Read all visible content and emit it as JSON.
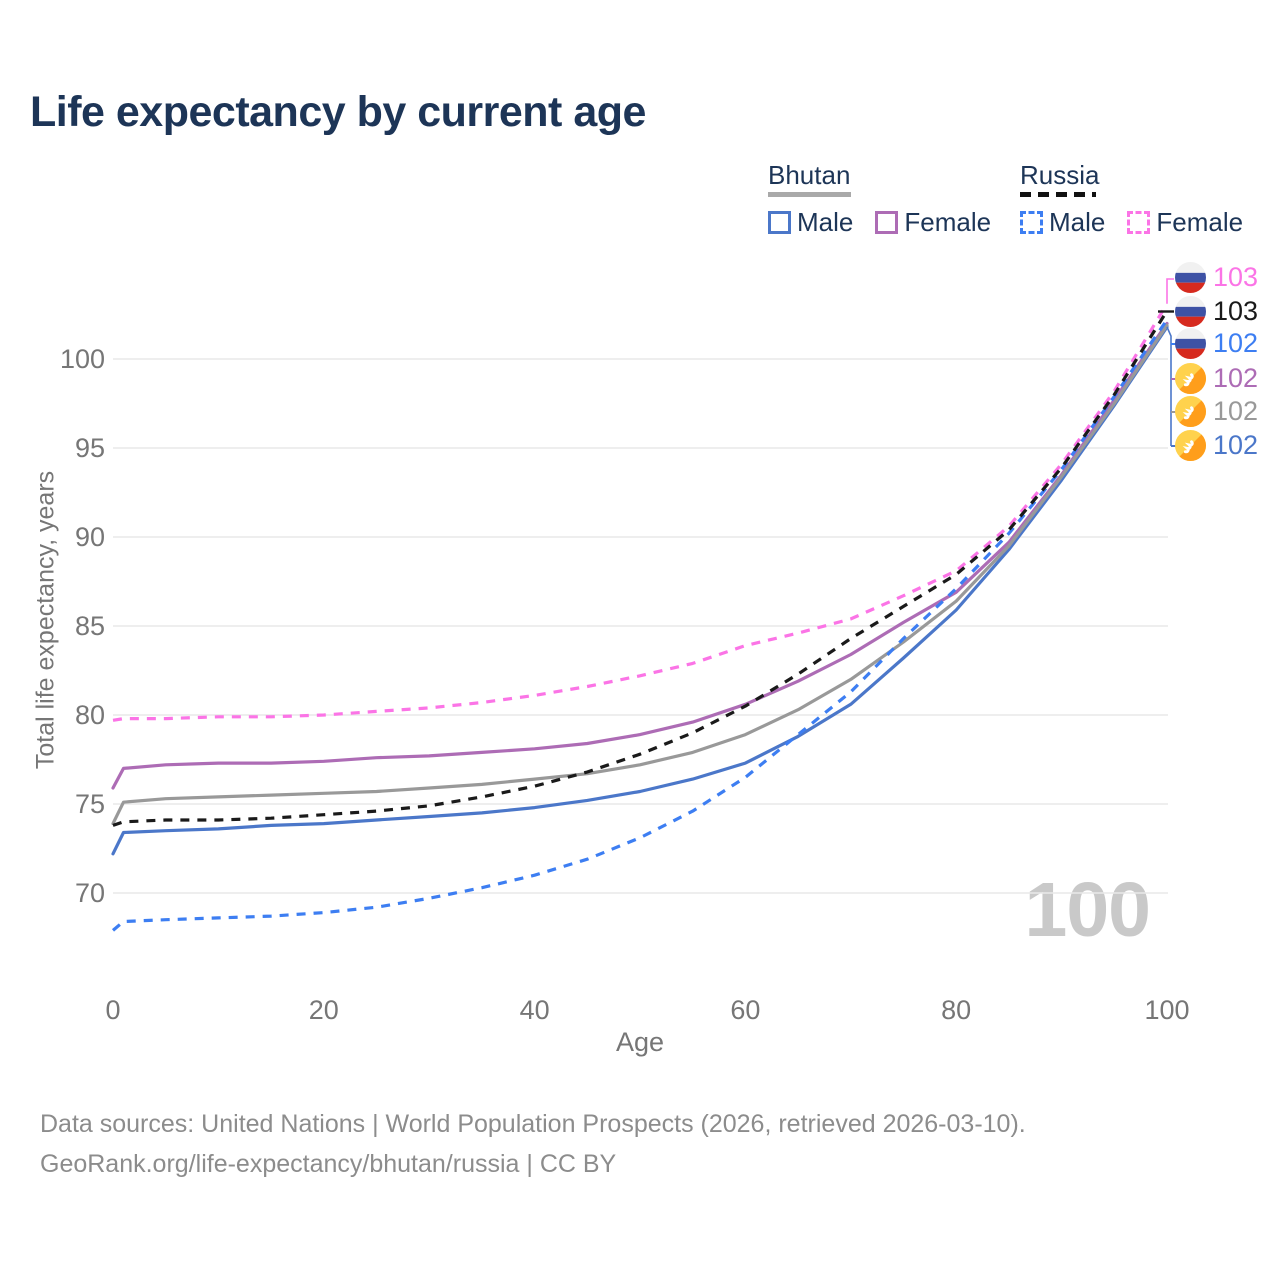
{
  "title": "Life expectancy by current age",
  "legend": {
    "groups": [
      {
        "country": "Bhutan",
        "line_style": "solid",
        "underline_color": "#a9a9a9",
        "items": [
          {
            "label": "Male",
            "color": "#4b77c9"
          },
          {
            "label": "Female",
            "color": "#ad6cb5"
          }
        ]
      },
      {
        "country": "Russia",
        "line_style": "dashed",
        "underline_color": "#111111",
        "items": [
          {
            "label": "Male",
            "color": "#3d7ef2"
          },
          {
            "label": "Female",
            "color": "#fb74e6"
          }
        ]
      }
    ]
  },
  "axes": {
    "x": {
      "label": "Age",
      "ticks": [
        0,
        20,
        40,
        60,
        80,
        100
      ],
      "range": [
        0,
        100
      ]
    },
    "y": {
      "label": "Total life expectancy, years",
      "ticks": [
        70,
        75,
        80,
        85,
        90,
        95,
        100
      ],
      "range": [
        67,
        104
      ]
    }
  },
  "watermark": "100",
  "chart_data": {
    "type": "line",
    "title": "Life expectancy by current age",
    "xlabel": "Age",
    "ylabel": "Total life expectancy, years",
    "xlim": [
      0,
      100
    ],
    "ylim": [
      67,
      104
    ],
    "grid": "horizontal",
    "legend_position": "top-right",
    "x": [
      0,
      1,
      5,
      10,
      15,
      20,
      25,
      30,
      35,
      40,
      45,
      50,
      55,
      60,
      65,
      70,
      75,
      80,
      85,
      90,
      95,
      100
    ],
    "series": [
      {
        "id": "bhutan-male",
        "name": "Bhutan Male",
        "country": "Bhutan",
        "sex": "Male",
        "flag": "bhutan",
        "color": "#4b77c9",
        "dash": false,
        "end_label": "102",
        "values": [
          72.2,
          73.4,
          73.5,
          73.6,
          73.8,
          73.9,
          74.1,
          74.3,
          74.5,
          74.8,
          75.2,
          75.7,
          76.4,
          77.3,
          78.8,
          80.6,
          83.2,
          85.9,
          89.3,
          93.2,
          97.4,
          101.8
        ]
      },
      {
        "id": "bhutan-female",
        "name": "Bhutan Female",
        "country": "Bhutan",
        "sex": "Female",
        "flag": "bhutan",
        "color": "#ad6cb5",
        "dash": false,
        "end_label": "102",
        "values": [
          75.9,
          77.0,
          77.2,
          77.3,
          77.3,
          77.4,
          77.6,
          77.7,
          77.9,
          78.1,
          78.4,
          78.9,
          79.6,
          80.6,
          81.9,
          83.4,
          85.2,
          86.9,
          89.7,
          93.5,
          97.7,
          102.0
        ]
      },
      {
        "id": "bhutan-both",
        "name": "Bhutan",
        "country": "Bhutan",
        "sex": "Both",
        "flag": "bhutan",
        "color": "#999999",
        "dash": false,
        "end_label": "102",
        "values": [
          73.9,
          75.1,
          75.3,
          75.4,
          75.5,
          75.6,
          75.7,
          75.9,
          76.1,
          76.4,
          76.7,
          77.2,
          77.9,
          78.9,
          80.3,
          82.0,
          84.1,
          86.4,
          89.5,
          93.4,
          97.5,
          101.9
        ]
      },
      {
        "id": "russia-male",
        "name": "Russia Male",
        "country": "Russia",
        "sex": "Male",
        "flag": "russia",
        "color": "#3d7ef2",
        "dash": true,
        "end_label": "102",
        "values": [
          67.9,
          68.4,
          68.5,
          68.6,
          68.7,
          68.9,
          69.2,
          69.7,
          70.3,
          71.0,
          71.9,
          73.1,
          74.6,
          76.5,
          78.9,
          81.3,
          84.3,
          87.1,
          90.2,
          93.8,
          97.9,
          102.2
        ]
      },
      {
        "id": "russia-female",
        "name": "Russia Female",
        "country": "Russia",
        "sex": "Female",
        "flag": "russia",
        "color": "#fb74e6",
        "dash": true,
        "end_label": "103",
        "values": [
          79.7,
          79.8,
          79.8,
          79.9,
          79.9,
          80.0,
          80.2,
          80.4,
          80.7,
          81.1,
          81.6,
          82.2,
          82.9,
          83.9,
          84.6,
          85.4,
          86.7,
          88.1,
          90.6,
          94.1,
          98.2,
          103.1
        ]
      },
      {
        "id": "russia-both",
        "name": "Russia",
        "country": "Russia",
        "sex": "Both",
        "flag": "russia",
        "color": "#1a1a1a",
        "dash": true,
        "end_label": "103",
        "values": [
          73.8,
          74.0,
          74.1,
          74.1,
          74.2,
          74.4,
          74.6,
          74.9,
          75.4,
          76.0,
          76.8,
          77.8,
          79.0,
          80.5,
          82.3,
          84.3,
          86.1,
          87.9,
          90.4,
          93.9,
          98.0,
          102.7
        ]
      }
    ]
  },
  "footer": {
    "line1": "Data sources: United Nations | World Population Prospects (2026, retrieved 2026-03-10).",
    "line2": "GeoRank.org/life-expectancy/bhutan/russia | CC BY"
  }
}
